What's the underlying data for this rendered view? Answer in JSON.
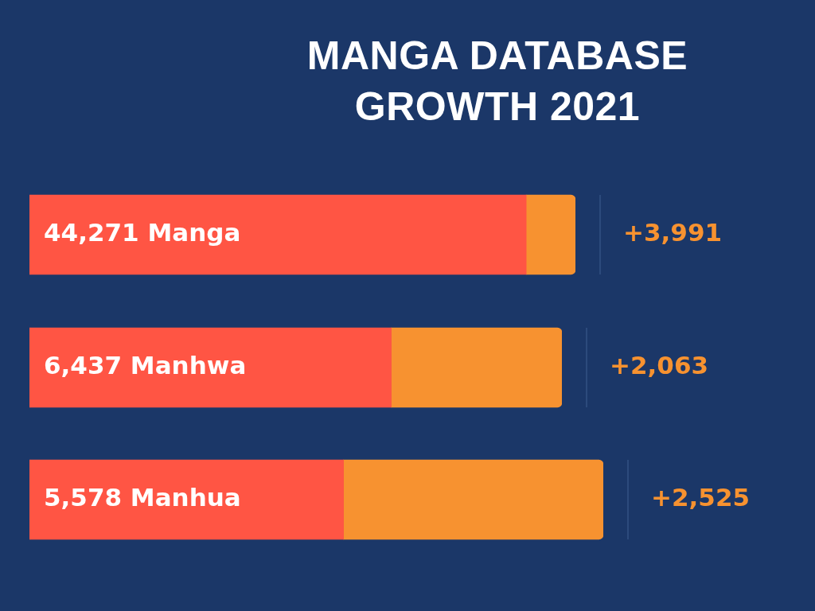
{
  "chart_data": [
    {
      "type": "bar",
      "title": "MANGA DATABASE GROWTH 2021",
      "orientation": "horizontal",
      "stacked": true,
      "categories": [
        "Manga"
      ],
      "series": [
        {
          "color": "#ff5544",
          "values": [
            40280
          ]
        },
        {
          "color": "#f79230",
          "values": [
            3991
          ],
          "value_labels": [
            "+3,991"
          ]
        }
      ],
      "totals": [
        "44,271"
      ]
    },
    {
      "type": "bar",
      "orientation": "horizontal",
      "stacked": true,
      "categories": [
        "Manhwa"
      ],
      "series": [
        {
          "color": "#ff5544",
          "values": [
            4374
          ]
        },
        {
          "color": "#f79230",
          "values": [
            2063
          ],
          "value_labels": [
            "+2,063"
          ]
        }
      ],
      "totals": [
        "6,437"
      ]
    },
    {
      "type": "bar",
      "orientation": "horizontal",
      "stacked": true,
      "categories": [
        "Manhua"
      ],
      "series": [
        {
          "color": "#ff5544",
          "values": [
            3053
          ]
        },
        {
          "color": "#f79230",
          "values": [
            2525
          ],
          "value_labels": [
            "+2,525"
          ]
        }
      ],
      "totals": [
        "5,578"
      ]
    }
  ]
}
